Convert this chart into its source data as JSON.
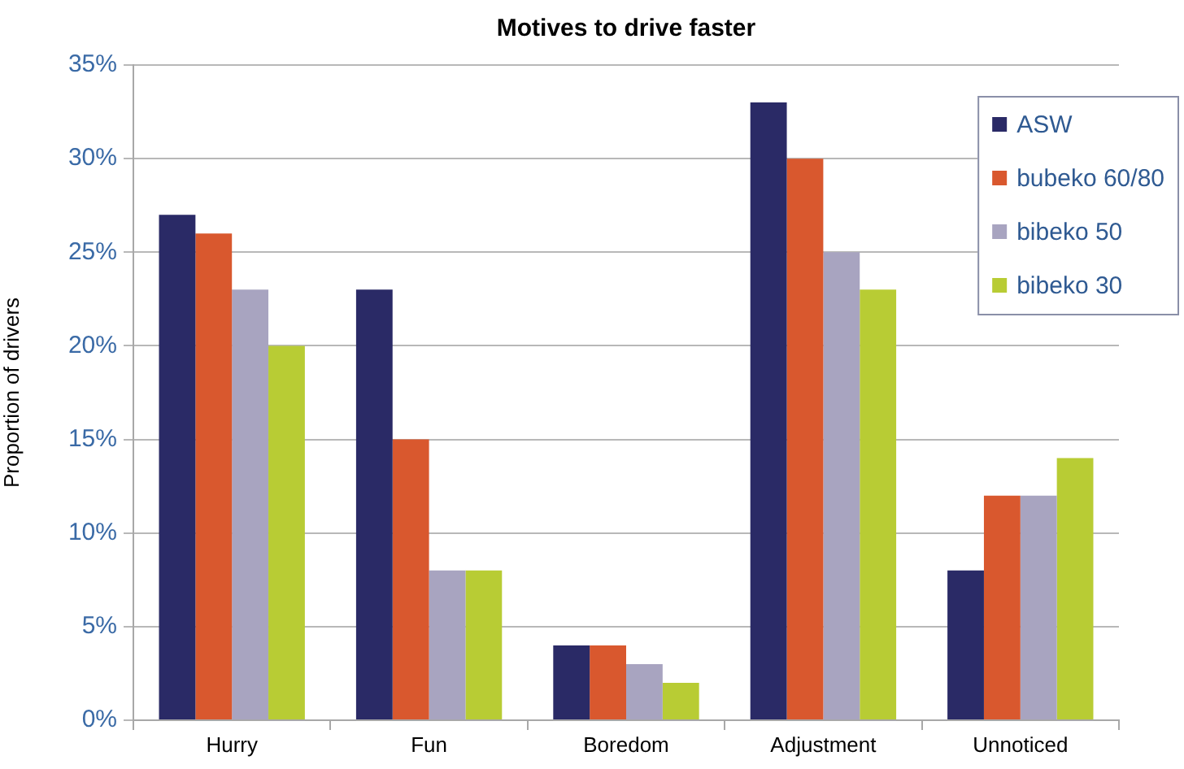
{
  "chart_data": {
    "type": "bar",
    "title": "Motives to drive faster",
    "ylabel": "Proportion of drivers",
    "categories": [
      "Hurry",
      "Fun",
      "Boredom",
      "Adjustment",
      "Unnoticed"
    ],
    "series": [
      {
        "name": "ASW",
        "color": "#2a2a66",
        "values": [
          27,
          23,
          4,
          33,
          8
        ]
      },
      {
        "name": "bubeko 60/80",
        "color": "#d9582e",
        "values": [
          26,
          15,
          4,
          30,
          12
        ]
      },
      {
        "name": "bibeko 50",
        "color": "#a8a4c0",
        "values": [
          23,
          8,
          3,
          25,
          12
        ]
      },
      {
        "name": "bibeko 30",
        "color": "#b8cc34",
        "values": [
          20,
          8,
          2,
          23,
          14
        ]
      }
    ],
    "ylim": [
      0,
      35
    ],
    "yticks": [
      {
        "value": 0,
        "label": "0%"
      },
      {
        "value": 5,
        "label": "5%"
      },
      {
        "value": 10,
        "label": "10%"
      },
      {
        "value": 15,
        "label": "15%"
      },
      {
        "value": 20,
        "label": "20%"
      },
      {
        "value": 25,
        "label": "25%"
      },
      {
        "value": 30,
        "label": "30%"
      },
      {
        "value": 35,
        "label": "35%"
      }
    ],
    "grid": "y",
    "legend": "top right"
  }
}
